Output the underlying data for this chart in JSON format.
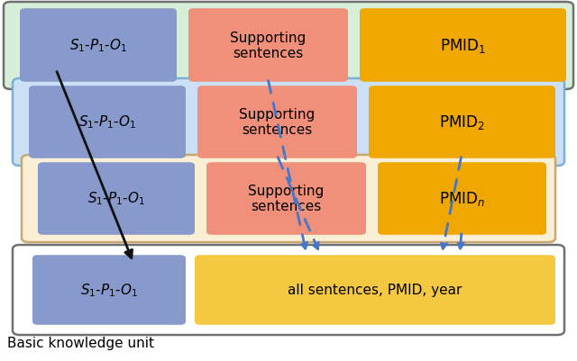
{
  "bg_color": "#ffffff",
  "row1_color": "#d8eed6",
  "row2_color": "#cce0f5",
  "row3_color": "#faefd4",
  "row4_color": "#ffffff",
  "row1_edge": "#707070",
  "row2_edge": "#7ab0d8",
  "row3_edge": "#c8a870",
  "row4_edge": "#707070",
  "spo_color": "#8899cc",
  "sup_color": "#f0907a",
  "pmid_color": "#f0a800",
  "bottom_all_color": "#f5c842",
  "arrow_blue": "#4477cc",
  "arrow_black": "#111111",
  "rows": [
    {
      "pmid_label": "PMID$_1$"
    },
    {
      "pmid_label": "PMID$_2$"
    },
    {
      "pmid_label": "PMID$_n$"
    }
  ],
  "spo_text": "$S_1$-$P_1$-$O_1$",
  "sup_text": "Supporting\nsentences",
  "bottom_all_text": "all sentences, PMID, year",
  "bottom_label": "Basic knowledge unit"
}
